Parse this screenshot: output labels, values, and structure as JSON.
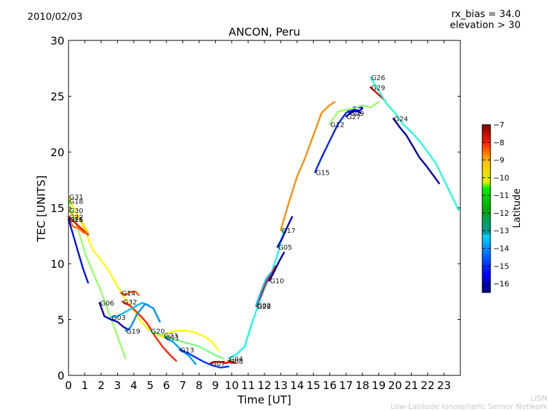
{
  "header": {
    "date": "2010/02/03",
    "rx_bias": "rx_bias = 34.0",
    "elevation": "elevation > 30"
  },
  "footer": {
    "org_short": "LISN",
    "org_long": "Low-Latitude Ionospheric Sensor Network"
  },
  "chart_data": {
    "type": "line",
    "title": "ANCON, Peru",
    "xlabel": "Time [UT]",
    "ylabel": "TEC [UNITS]",
    "xlim": [
      0,
      24
    ],
    "ylim": [
      0,
      30
    ],
    "xticks": [
      "0",
      "1",
      "2",
      "3",
      "4",
      "5",
      "6",
      "7",
      "8",
      "9",
      "10",
      "11",
      "12",
      "13",
      "14",
      "15",
      "16",
      "17",
      "18",
      "19",
      "20",
      "21",
      "22",
      "23"
    ],
    "yticks": [
      "0",
      "5",
      "10",
      "15",
      "20",
      "25",
      "30"
    ],
    "grid": false,
    "colorbar": {
      "label": "Latitude",
      "range": [
        -16.5,
        -7
      ],
      "ticks": [
        "−7",
        "−8",
        "−9",
        "−10",
        "−11",
        "−12",
        "−13",
        "−14",
        "−15",
        "−16"
      ],
      "colormap": "jet"
    },
    "series": [
      {
        "name": "G31",
        "lat": -10.5,
        "x": [
          0,
          0.3,
          0.6,
          1.0,
          1.5,
          2.0,
          2.5,
          3.0,
          3.5,
          4.0,
          4.5,
          5.0,
          5.5,
          6.0
        ],
        "y": [
          16.0,
          15.0,
          14.3,
          13.0,
          11.2,
          10.3,
          9.3,
          8.0,
          6.8,
          5.8,
          4.7,
          4.0,
          3.6,
          3.3
        ]
      },
      {
        "name": "G18",
        "lat": -11.5,
        "x": [
          0,
          0.3,
          0.6,
          1.0,
          1.5,
          2.0,
          2.5,
          3.0,
          3.5
        ],
        "y": [
          15.6,
          14.2,
          13.0,
          11.0,
          9.2,
          7.5,
          5.5,
          3.5,
          1.5
        ]
      },
      {
        "name": "G30",
        "lat": -10.2,
        "x": [
          0,
          0.3,
          0.6,
          1.0,
          1.2
        ],
        "y": [
          14.8,
          14.3,
          14.2,
          13.3,
          12.8
        ]
      },
      {
        "name": "G22",
        "lat": -8.3,
        "x": [
          0,
          0.3,
          0.6,
          0.9,
          1.2
        ],
        "y": [
          14.2,
          13.8,
          13.4,
          13.0,
          12.6
        ]
      },
      {
        "name": "G21",
        "lat": -9.2,
        "x": [
          0,
          0.3,
          0.6,
          0.9,
          1.1
        ],
        "y": [
          14.0,
          13.3,
          13.2,
          12.8,
          12.7
        ]
      },
      {
        "name": "G16",
        "lat": -15.2,
        "x": [
          0,
          0.3,
          0.6,
          0.9,
          1.2
        ],
        "y": [
          14.0,
          12.5,
          11.0,
          9.5,
          8.3
        ]
      },
      {
        "name": "G14",
        "lat": -9.0,
        "x": [
          3.2,
          3.5,
          3.8,
          4.1,
          4.3
        ],
        "y": [
          7.4,
          7.2,
          7.5,
          7.5,
          7.2
        ]
      },
      {
        "name": "G32",
        "lat": -8.5,
        "x": [
          3.3,
          3.8,
          4.3,
          4.8,
          5.3,
          5.8,
          6.3,
          6.6
        ],
        "y": [
          6.6,
          6.2,
          5.5,
          4.7,
          3.5,
          2.5,
          1.7,
          1.3
        ]
      },
      {
        "name": "G06",
        "lat": -16.0,
        "x": [
          1.9,
          2.2,
          2.6,
          3.0,
          3.4,
          3.7
        ],
        "y": [
          6.5,
          5.3,
          5.0,
          4.8,
          4.3,
          4.1
        ]
      },
      {
        "name": "G03",
        "lat": -13.5,
        "x": [
          2.6,
          3.0,
          3.5,
          4.0,
          4.5,
          4.9
        ],
        "y": [
          5.2,
          5.3,
          5.7,
          6.1,
          6.5,
          6.3
        ]
      },
      {
        "name": "G19",
        "lat": -14.0,
        "x": [
          3.5,
          3.8,
          4.2,
          4.7,
          5.2,
          5.6
        ],
        "y": [
          4.0,
          4.3,
          5.5,
          6.4,
          6.0,
          4.8
        ]
      },
      {
        "name": "G20",
        "lat": -11.8,
        "x": [
          5.0,
          5.5,
          6.0,
          6.5,
          7.0,
          7.5,
          8.0,
          8.5,
          9.0,
          9.5
        ],
        "y": [
          4.0,
          3.7,
          3.5,
          3.2,
          3.0,
          2.8,
          2.6,
          2.2,
          1.8,
          1.5
        ]
      },
      {
        "name": "G23",
        "lat": -10.6,
        "x": [
          5.8,
          6.3,
          6.8,
          7.3,
          7.8,
          8.3,
          8.8,
          9.2
        ],
        "y": [
          3.6,
          3.9,
          4.0,
          4.0,
          3.8,
          3.5,
          3.0,
          2.2
        ]
      },
      {
        "name": "G11",
        "lat": -13.8,
        "x": [
          5.9,
          6.4,
          6.9,
          7.4,
          7.8
        ],
        "y": [
          3.4,
          3.0,
          2.3,
          1.7,
          1.0
        ]
      },
      {
        "name": "G13",
        "lat": -14.8,
        "x": [
          6.8,
          7.3,
          7.8,
          8.3,
          8.8,
          9.3,
          9.8
        ],
        "y": [
          2.3,
          2.0,
          1.6,
          1.2,
          0.9,
          0.7,
          0.8
        ]
      },
      {
        "name": "G07",
        "lat": -8.0,
        "x": [
          8.7,
          9.0,
          9.3,
          9.6,
          9.9
        ],
        "y": [
          1.1,
          1.2,
          1.2,
          1.1,
          1.2
        ]
      },
      {
        "name": "G08",
        "lat": -7.6,
        "x": [
          9.8,
          10.0,
          10.2
        ],
        "y": [
          1.3,
          1.2,
          1.1
        ]
      },
      {
        "name": "G04",
        "lat": -12.8,
        "x": [
          9.8,
          10.3,
          10.8,
          11.2,
          11.6,
          12.0,
          12.4,
          12.8,
          13.2
        ],
        "y": [
          1.5,
          1.9,
          2.6,
          4.5,
          6.2,
          7.8,
          9.0,
          10.8,
          13.0
        ]
      },
      {
        "name": "G28",
        "lat": -8.2,
        "x": [
          11.5,
          11.8,
          12.1,
          12.4,
          12.7
        ],
        "y": [
          6.2,
          7.2,
          8.3,
          9.0,
          9.8
        ]
      },
      {
        "name": "G02",
        "lat": -13.6,
        "x": [
          11.5,
          11.8,
          12.1,
          12.4
        ],
        "y": [
          6.3,
          7.5,
          8.6,
          9.2
        ]
      },
      {
        "name": "G10",
        "lat": -16.2,
        "x": [
          12.3,
          12.6,
          12.9,
          13.2
        ],
        "y": [
          8.5,
          9.3,
          10.2,
          11.0
        ]
      },
      {
        "name": "G05",
        "lat": -15.8,
        "x": [
          12.8,
          13.1,
          13.4,
          13.7
        ],
        "y": [
          11.5,
          12.3,
          13.3,
          14.2
        ]
      },
      {
        "name": "G17",
        "lat": -9.5,
        "x": [
          13.0,
          13.5,
          14.0,
          14.5,
          15.0,
          15.5,
          16.0,
          16.3
        ],
        "y": [
          13.0,
          15.5,
          17.8,
          19.5,
          21.5,
          23.5,
          24.2,
          24.5
        ]
      },
      {
        "name": "G15",
        "lat": -15.0,
        "x": [
          15.1,
          15.5,
          16.0,
          16.5,
          17.0,
          17.5,
          18.0
        ],
        "y": [
          18.2,
          19.5,
          21.0,
          22.5,
          23.5,
          24.0,
          24.0
        ]
      },
      {
        "name": "G12",
        "lat": -11.5,
        "x": [
          16.0,
          16.5,
          17.0,
          17.5,
          18.0,
          18.5,
          19.0
        ],
        "y": [
          22.5,
          23.6,
          23.8,
          23.9,
          24.2,
          24.0,
          24.5
        ]
      },
      {
        "name": "G09",
        "lat": -16.0,
        "x": [
          17.2,
          17.5,
          17.8,
          18.0
        ],
        "y": [
          23.5,
          23.8,
          23.7,
          23.9
        ]
      },
      {
        "name": "G27",
        "lat": -15.8,
        "x": [
          17.0,
          17.3,
          17.6,
          17.9
        ],
        "y": [
          23.2,
          23.5,
          23.7,
          23.5
        ]
      },
      {
        "name": "G29",
        "lat": -7.8,
        "x": [
          18.5,
          18.8,
          19.1,
          19.4
        ],
        "y": [
          25.8,
          25.4,
          25.0,
          24.6
        ]
      },
      {
        "name": "G26",
        "lat": -12.6,
        "x": [
          18.5,
          19.0,
          19.5,
          20.0,
          20.5,
          21.0,
          21.5,
          22.0,
          22.5,
          23.0,
          23.5,
          23.9
        ],
        "y": [
          26.7,
          25.5,
          24.3,
          23.5,
          22.5,
          21.8,
          21.0,
          20.0,
          19.0,
          17.5,
          16.0,
          14.8
        ]
      },
      {
        "name": "G24",
        "lat": -16.2,
        "x": [
          19.9,
          20.3,
          20.7,
          21.1,
          21.5,
          21.9,
          22.3,
          22.7
        ],
        "y": [
          23.0,
          22.2,
          21.5,
          20.5,
          19.5,
          18.8,
          18.0,
          17.2
        ]
      }
    ]
  }
}
